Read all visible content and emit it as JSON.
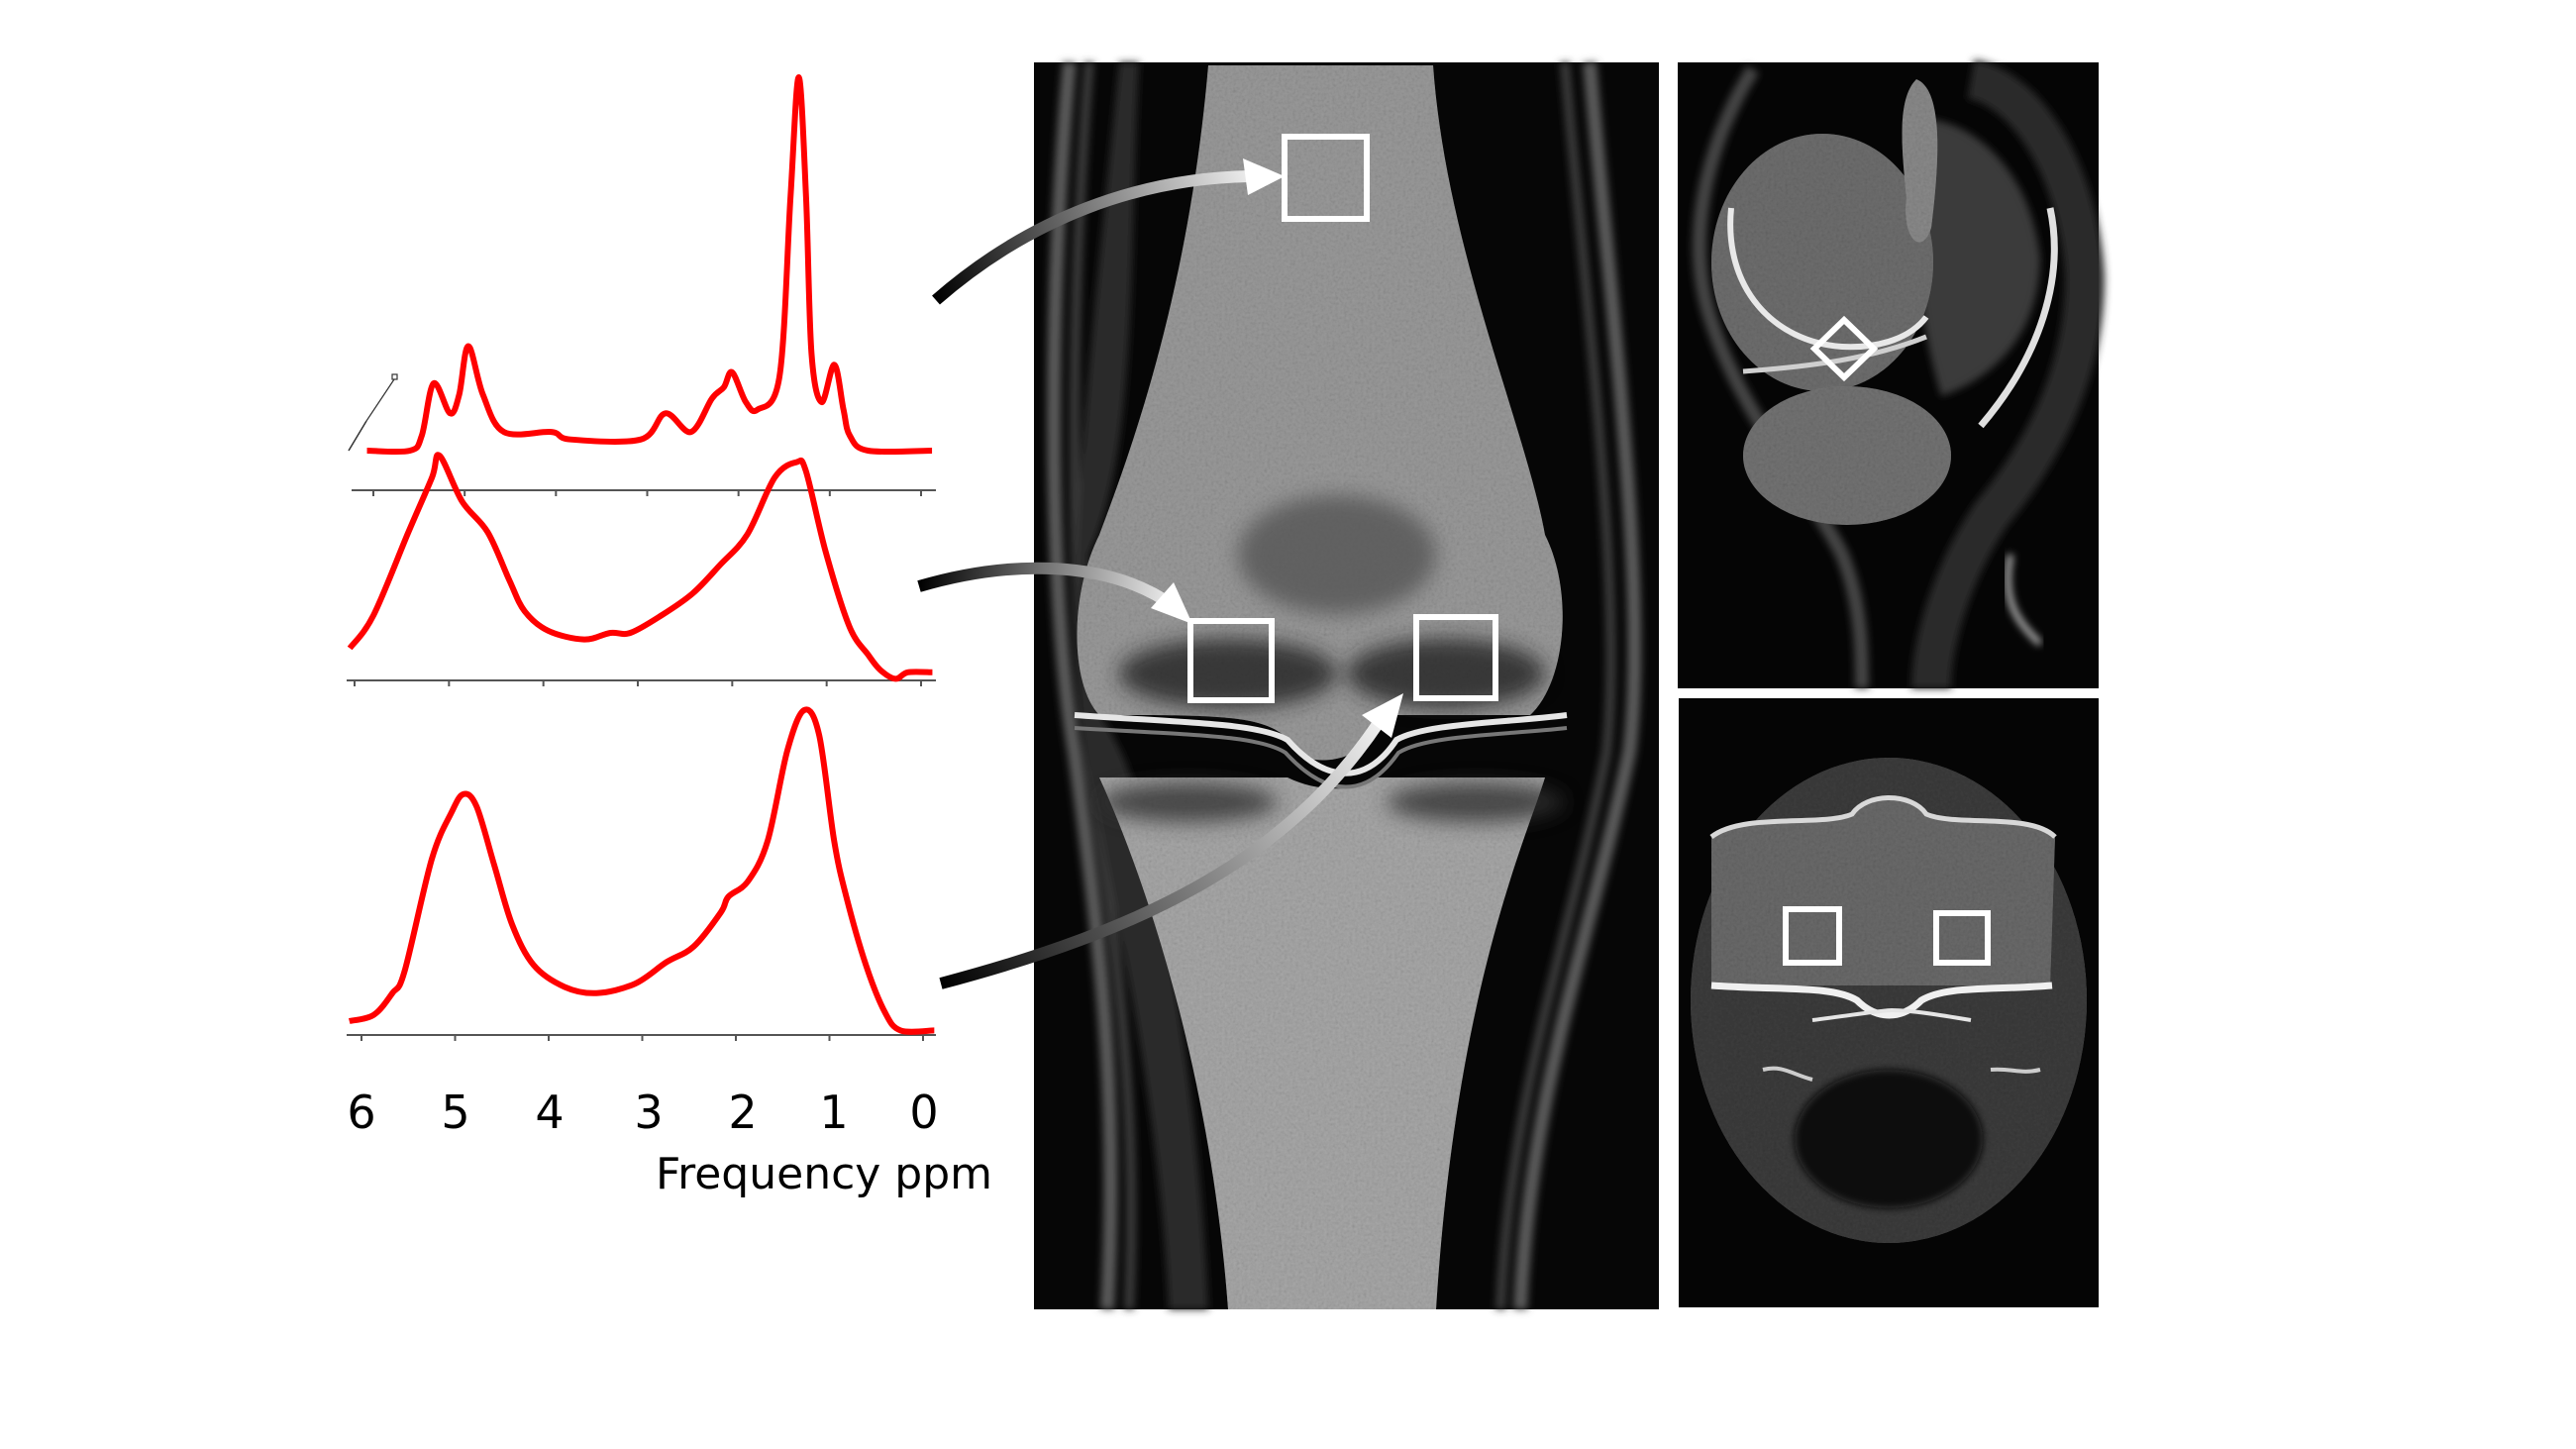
{
  "chart_data": [
    {
      "type": "line",
      "xlim": [
        6,
        0
      ],
      "x_reversed": true,
      "grid": false,
      "color": "#ff0000",
      "x": [
        6.07,
        5.6,
        5.47,
        5.34,
        5.16,
        5.06,
        4.96,
        4.8,
        4.57,
        4.05,
        3.84,
        3.07,
        2.8,
        2.52,
        2.29,
        2.16,
        2.07,
        1.92,
        1.79,
        1.55,
        1.43,
        1.34,
        1.26,
        1.2,
        1.09,
        0.95,
        0.85,
        0.78,
        0.58,
        -0.12
      ],
      "y": [
        0,
        0,
        4,
        18,
        10,
        15,
        28,
        15,
        5,
        5,
        3,
        3,
        10,
        5,
        14,
        17,
        21,
        13,
        11,
        20,
        68,
        100,
        68,
        26,
        13,
        23,
        11,
        4,
        0,
        0
      ]
    },
    {
      "type": "line",
      "xlim": [
        6,
        0
      ],
      "x_reversed": true,
      "grid": false,
      "color": "#ff0000",
      "x": [
        6.05,
        5.8,
        5.43,
        5.18,
        5.1,
        4.86,
        4.59,
        4.36,
        4.2,
        3.95,
        3.57,
        3.29,
        3.08,
        2.75,
        2.42,
        2.13,
        1.84,
        1.55,
        1.32,
        1.22,
        1.01,
        0.76,
        0.56,
        0.43,
        0.27,
        0.14,
        -0.12
      ],
      "y": [
        12,
        27,
        65,
        90,
        100,
        79,
        65,
        43,
        29,
        20,
        16,
        19,
        19,
        27,
        37,
        50,
        64,
        90,
        97,
        93,
        56,
        22,
        9,
        2,
        -2,
        1,
        1
      ]
    },
    {
      "type": "line",
      "xlim": [
        6,
        0
      ],
      "x_reversed": true,
      "grid": false,
      "color": "#ff0000",
      "x": [
        6.13,
        5.87,
        5.67,
        5.54,
        5.25,
        5.04,
        4.91,
        4.77,
        4.58,
        4.39,
        4.16,
        3.83,
        3.49,
        3.08,
        2.74,
        2.45,
        2.16,
        2.08,
        1.87,
        1.66,
        1.45,
        1.27,
        1.11,
        0.95,
        0.82,
        0.61,
        0.41,
        0.24,
        -0.12
      ],
      "y": [
        0,
        2,
        9,
        16,
        52,
        67,
        73,
        69,
        50,
        31,
        18,
        11,
        9,
        12,
        19,
        24,
        35,
        40,
        45,
        58,
        87,
        100,
        92,
        58,
        40,
        18,
        3,
        -3,
        -3
      ],
      "x_ticks": [
        "6",
        "5",
        "4",
        "3",
        "2",
        "1",
        "0"
      ],
      "xlabel": "Frequency ppm"
    }
  ],
  "images": {
    "coronal": {
      "roi_count": 3,
      "roi_color": "#ffffff"
    },
    "sagittal": {
      "roi_count": 1,
      "roi_color": "#ffffff"
    },
    "axial": {
      "roi_count": 2,
      "roi_color": "#ffffff"
    }
  }
}
